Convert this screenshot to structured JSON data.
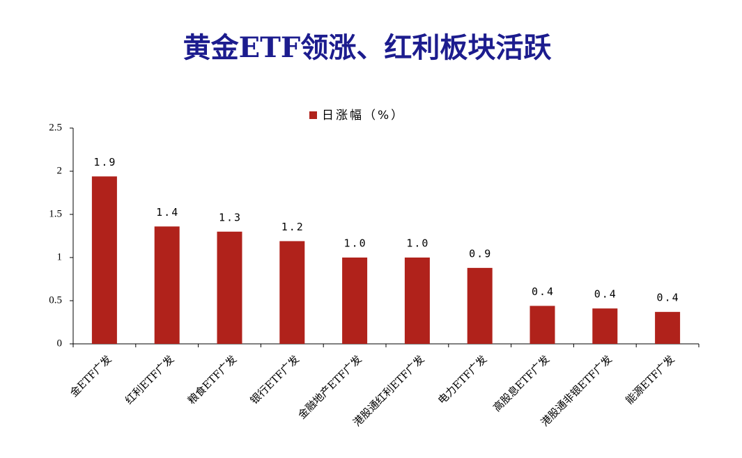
{
  "chart_data": {
    "type": "bar",
    "title": "黄金ETF领涨、红利板块活跃",
    "categories": [
      "金ETF广发",
      "红利ETF广发",
      "粮食ETF广发",
      "银行ETF广发",
      "金融地产ETF广发",
      "港股通红利ETF广发",
      "电力ETF广发",
      "高股息ETF广发",
      "港股通非银ETF广发",
      "能源ETF广发"
    ],
    "series": [
      {
        "name": "日涨幅（%）",
        "color": "#b0221b",
        "values": [
          1.94,
          1.36,
          1.3,
          1.19,
          1.0,
          1.0,
          0.88,
          0.44,
          0.41,
          0.37
        ],
        "value_labels": [
          "1.9",
          "1.4",
          "1.3",
          "1.2",
          "1.0",
          "1.0",
          "0.9",
          "0.4",
          "0.4",
          "0.4"
        ]
      }
    ],
    "ylim": [
      0,
      2.5
    ],
    "yticks": [
      0,
      0.5,
      1,
      1.5,
      2,
      2.5
    ],
    "grid": false,
    "legend": "top"
  }
}
